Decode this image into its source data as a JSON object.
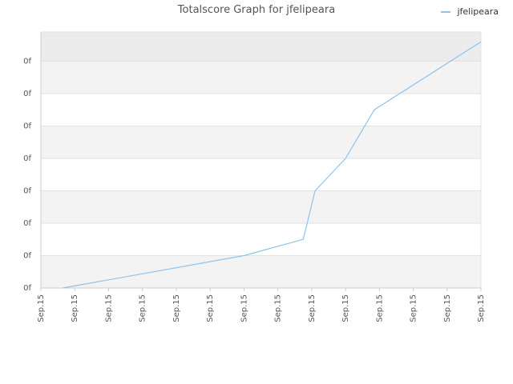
{
  "chart_data": {
    "type": "line",
    "title": "Totalscore Graph for jfelipeara",
    "xlabel": "",
    "ylabel": "",
    "x_tick_labels": [
      "Sep.15",
      "Sep.15",
      "Sep.15",
      "Sep.15",
      "Sep.15",
      "Sep.15",
      "Sep.15",
      "Sep.15",
      "Sep.15",
      "Sep.15",
      "Sep.15",
      "Sep.15",
      "Sep.15",
      "Sep.15"
    ],
    "y_tick_labels": [
      "0f",
      "0f",
      "0f",
      "0f",
      "0f",
      "0f",
      "0f",
      "0f"
    ],
    "xlim": [
      0,
      13
    ],
    "ylim": [
      0,
      7.9
    ],
    "grid": true,
    "legend_position": "top-right",
    "series": [
      {
        "name": "jfelipeara",
        "color": "#8fc3ea",
        "x": [
          0.65,
          6.0,
          7.75,
          8.1,
          9.0,
          9.85,
          13.0
        ],
        "y": [
          0.0,
          1.0,
          1.5,
          3.0,
          4.0,
          5.5,
          7.6
        ]
      }
    ]
  },
  "colors": {
    "band_dark": "#f3f3f3",
    "band_top": "#ececec",
    "grid": "#e2e2e2",
    "axis": "#cccccc"
  }
}
